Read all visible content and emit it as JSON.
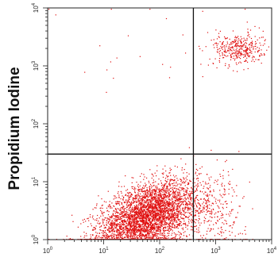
{
  "chart_data": {
    "type": "scatter",
    "title": "",
    "xlabel": "",
    "ylabel": "Propidium Iodine",
    "x_scale": "log",
    "y_scale": "log",
    "xlim": [
      1,
      10000
    ],
    "ylim": [
      1,
      10000
    ],
    "x_ticks": [
      {
        "base": "10",
        "exp": "0",
        "value": 1
      },
      {
        "base": "10",
        "exp": "1",
        "value": 10
      },
      {
        "base": "10",
        "exp": "2",
        "value": 100
      },
      {
        "base": "10",
        "exp": "3",
        "value": 1000
      },
      {
        "base": "10",
        "exp": "4",
        "value": 10000
      }
    ],
    "y_ticks": [
      {
        "base": "10",
        "exp": "0",
        "value": 1
      },
      {
        "base": "10",
        "exp": "1",
        "value": 10
      },
      {
        "base": "10",
        "exp": "2",
        "value": 100
      },
      {
        "base": "10",
        "exp": "3",
        "value": 1000
      },
      {
        "base": "10",
        "exp": "4",
        "value": 10000
      }
    ],
    "gates": {
      "x": 400,
      "y": 30
    },
    "grid": false,
    "colors": {
      "points": "#e01010",
      "axes": "#222222",
      "gate": "#111111"
    },
    "populations": [
      {
        "region": "lower-left",
        "center_x": 60,
        "center_y": 2.5,
        "spread_x_decades": 0.45,
        "spread_y_decades": 0.28,
        "count": 4200,
        "shape": "diagonal-tail"
      },
      {
        "region": "lower-right",
        "center_x": 900,
        "center_y": 3,
        "spread_x_decades": 0.3,
        "spread_y_decades": 0.35,
        "count": 300
      },
      {
        "region": "upper-right",
        "center_x": 2500,
        "center_y": 2000,
        "spread_x_decades": 0.22,
        "spread_y_decades": 0.14,
        "count": 380
      },
      {
        "region": "upper-left",
        "center_x": 100,
        "center_y": 1500,
        "spread_x_decades": 0.9,
        "spread_y_decades": 0.6,
        "count": 25
      }
    ]
  }
}
